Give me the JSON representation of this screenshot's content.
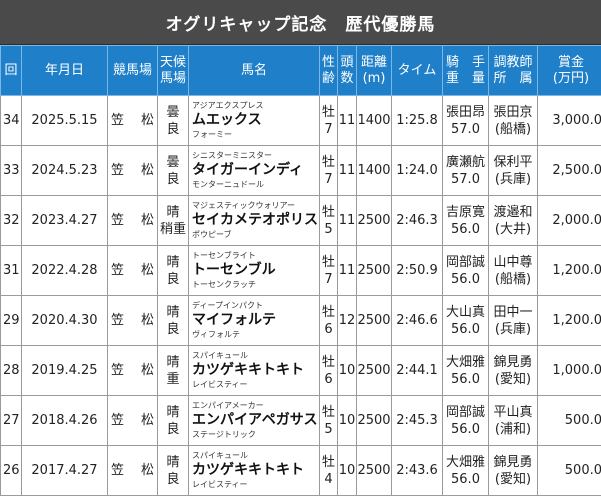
{
  "title": "オグリキャップ記念　歴代優勝馬",
  "headers": {
    "round": "回",
    "date": "年月日",
    "venue": "競馬場",
    "weather_1": "天候",
    "weather_2": "馬場",
    "horse": "馬名",
    "sex_1": "性",
    "sex_2": "齢",
    "heads_1": "頭",
    "heads_2": "数",
    "dist_1": "距離",
    "dist_2": "(m)",
    "time": "タイム",
    "jockey_1": "騎　手",
    "jockey_2": "重　量",
    "trainer_1": "調教師",
    "trainer_2": "所　属",
    "prize_1": "賞金",
    "prize_2": "(万円)"
  },
  "rows": [
    {
      "round": "34",
      "date": "2025.5.15",
      "venue": "笠　松",
      "weather": "曇",
      "track": "良",
      "sire": "アジアエクスプレス",
      "name": "ムエックス",
      "dam": "フォーミー",
      "sex": "牡",
      "age": "7",
      "heads": "11",
      "distance": "1400",
      "time": "1:25.8",
      "jockey": "張田昂",
      "weight": "57.0",
      "trainer": "張田京",
      "stable": "(船橋)",
      "prize": "3,000.0"
    },
    {
      "round": "33",
      "date": "2024.5.23",
      "venue": "笠　松",
      "weather": "曇",
      "track": "良",
      "sire": "シニスターミニスター",
      "name": "タイガーインディ",
      "dam": "モンターニュドール",
      "sex": "牡",
      "age": "7",
      "heads": "11",
      "distance": "1400",
      "time": "1:24.0",
      "jockey": "廣瀬航",
      "weight": "57.0",
      "trainer": "保利平",
      "stable": "(兵庫)",
      "prize": "2,500.0"
    },
    {
      "round": "32",
      "date": "2023.4.27",
      "venue": "笠　松",
      "weather": "晴",
      "track": "稍重",
      "sire": "マジェスティックウォリアー",
      "name": "セイカメテオポリス",
      "dam": "ポウピーブ",
      "sex": "牡",
      "age": "5",
      "heads": "11",
      "distance": "2500",
      "time": "2:46.3",
      "jockey": "吉原寛",
      "weight": "56.0",
      "trainer": "渡邉和",
      "stable": "(大井)",
      "prize": "2,000.0"
    },
    {
      "round": "31",
      "date": "2022.4.28",
      "venue": "笠　松",
      "weather": "晴",
      "track": "良",
      "sire": "トーセンブライト",
      "name": "トーセンブル",
      "dam": "トーセンクラッチ",
      "sex": "牡",
      "age": "7",
      "heads": "11",
      "distance": "2500",
      "time": "2:50.9",
      "jockey": "岡部誠",
      "weight": "56.0",
      "trainer": "山中尊",
      "stable": "(船橋)",
      "prize": "1,200.0"
    },
    {
      "round": "29",
      "date": "2020.4.30",
      "venue": "笠　松",
      "weather": "晴",
      "track": "良",
      "sire": "ディープインパクト",
      "name": "マイフォルテ",
      "dam": "ヴィフォルテ",
      "sex": "牡",
      "age": "6",
      "heads": "12",
      "distance": "2500",
      "time": "2:46.6",
      "jockey": "大山真",
      "weight": "56.0",
      "trainer": "田中一",
      "stable": "(兵庫)",
      "prize": "1,200.0"
    },
    {
      "round": "28",
      "date": "2019.4.25",
      "venue": "笠　松",
      "weather": "晴",
      "track": "重",
      "sire": "スパイキュール",
      "name": "カツゲキキトキト",
      "dam": "レイビスティー",
      "sex": "牡",
      "age": "6",
      "heads": "10",
      "distance": "2500",
      "time": "2:44.1",
      "jockey": "大畑雅",
      "weight": "56.0",
      "trainer": "錦見勇",
      "stable": "(愛知)",
      "prize": "1,000.0"
    },
    {
      "round": "27",
      "date": "2018.4.26",
      "venue": "笠　松",
      "weather": "晴",
      "track": "良",
      "sire": "エンパイアメーカー",
      "name": "エンパイアペガサス",
      "dam": "ステージトリック",
      "sex": "牡",
      "age": "5",
      "heads": "10",
      "distance": "2500",
      "time": "2:45.3",
      "jockey": "岡部誠",
      "weight": "56.0",
      "trainer": "平山真",
      "stable": "(浦和)",
      "prize": "500.0"
    },
    {
      "round": "26",
      "date": "2017.4.27",
      "venue": "笠　松",
      "weather": "晴",
      "track": "良",
      "sire": "スパイキュール",
      "name": "カツゲキキトキト",
      "dam": "レイビスティー",
      "sex": "牡",
      "age": "4",
      "heads": "10",
      "distance": "2500",
      "time": "2:43.6",
      "jockey": "大畑雅",
      "weight": "56.0",
      "trainer": "錦見勇",
      "stable": "(愛知)",
      "prize": "500.0"
    }
  ]
}
